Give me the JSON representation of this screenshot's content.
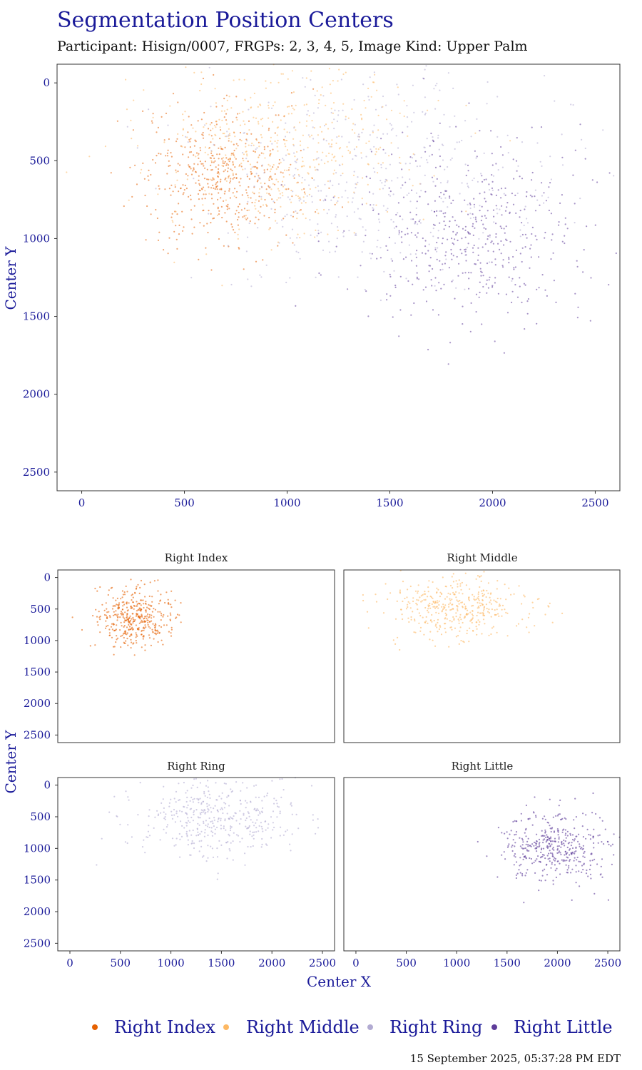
{
  "title": "Segmentation Position Centers",
  "subtitle": "Participant: Hisign/0007, FRGPs: 2, 3, 4, 5, Image Kind: Upper Palm",
  "timestamp": "15 September 2025, 05:37:28 PM EDT",
  "colors": {
    "text": "#1a1a99",
    "Right Index": "#e66101",
    "Right Middle": "#fdb863",
    "Right Ring": "#b2abd2",
    "Right Little": "#5e3c99"
  },
  "chart_data": [
    {
      "type": "scatter",
      "panel": "overview",
      "xlabel": "",
      "ylabel": "Center Y",
      "xlim": [
        -120,
        2620
      ],
      "ylim": [
        2620,
        -120
      ],
      "y_reversed": true,
      "x_ticks": [
        "0",
        "500",
        "1000",
        "1500",
        "2000",
        "2500"
      ],
      "y_ticks": [
        "0",
        "500",
        "1000",
        "1500",
        "2000",
        "2500"
      ],
      "grid": false,
      "series": [
        {
          "name": "Right Index",
          "center": [
            650,
            600
          ],
          "spread": [
            190,
            220
          ],
          "count": 480
        },
        {
          "name": "Right Middle",
          "center": [
            1000,
            420
          ],
          "spread": [
            330,
            260
          ],
          "count": 480
        },
        {
          "name": "Right Ring",
          "center": [
            1450,
            600
          ],
          "spread": [
            420,
            330
          ],
          "count": 480
        },
        {
          "name": "Right Little",
          "center": [
            1900,
            980
          ],
          "spread": [
            280,
            290
          ],
          "count": 480
        }
      ]
    },
    {
      "type": "scatter",
      "panel": "facet",
      "title": "Right Index",
      "xlim": [
        -120,
        2620
      ],
      "ylim": [
        2620,
        -120
      ],
      "series": [
        {
          "name": "Right Index",
          "center": [
            650,
            650
          ],
          "spread": [
            180,
            230
          ],
          "count": 420
        }
      ]
    },
    {
      "type": "scatter",
      "panel": "facet",
      "title": "Right Middle",
      "xlim": [
        -120,
        2620
      ],
      "ylim": [
        2620,
        -120
      ],
      "series": [
        {
          "name": "Right Middle",
          "center": [
            1000,
            450
          ],
          "spread": [
            320,
            250
          ],
          "count": 420
        }
      ]
    },
    {
      "type": "scatter",
      "panel": "facet",
      "title": "Right Ring",
      "xlim": [
        -120,
        2620
      ],
      "ylim": [
        2620,
        -120
      ],
      "series": [
        {
          "name": "Right Ring",
          "center": [
            1450,
            550
          ],
          "spread": [
            400,
            300
          ],
          "count": 420
        }
      ]
    },
    {
      "type": "scatter",
      "panel": "facet",
      "title": "Right Little",
      "xlim": [
        -120,
        2620
      ],
      "ylim": [
        2620,
        -120
      ],
      "series": [
        {
          "name": "Right Little",
          "center": [
            1950,
            1000
          ],
          "spread": [
            270,
            280
          ],
          "count": 420
        }
      ]
    }
  ],
  "facet_axes": {
    "xlabel": "Center X",
    "ylabel": "Center Y",
    "x_ticks": [
      "0",
      "500",
      "1000",
      "1500",
      "2000",
      "2500"
    ],
    "y_ticks": [
      "0",
      "500",
      "1000",
      "1500",
      "2000",
      "2500"
    ]
  },
  "legend": {
    "position": "bottom",
    "items": [
      "Right Index",
      "Right Middle",
      "Right Ring",
      "Right Little"
    ]
  }
}
